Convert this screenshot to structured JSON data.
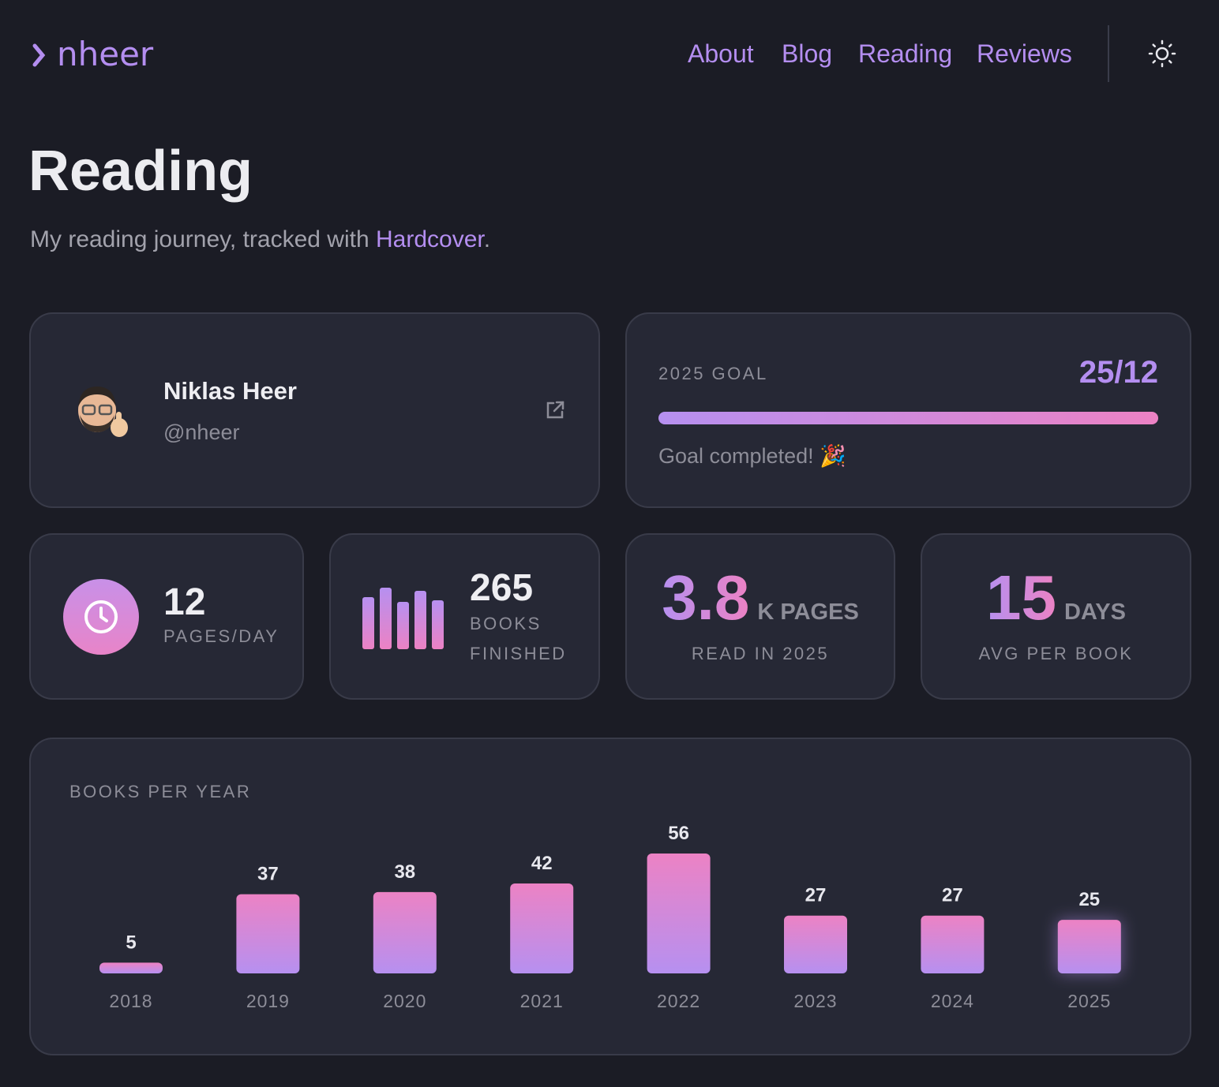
{
  "header": {
    "logo": "nheer",
    "nav": [
      "About",
      "Blog",
      "Reading",
      "Reviews"
    ]
  },
  "page": {
    "title": "Reading",
    "subtitle": "My reading journey, tracked with ",
    "link": "Hardcover",
    "subtitle_end": "."
  },
  "profile": {
    "name": "Niklas Heer",
    "handle": "@nheer"
  },
  "goal": {
    "label": "2025 GOAL",
    "progress": "25/12",
    "status": "Goal completed! 🎉"
  },
  "stats": [
    {
      "value": 12,
      "unit": "PAGES/DAY"
    },
    {
      "value": 265,
      "unit": "BOOKS FINISHED"
    },
    {
      "value": 3.8,
      "unit": "K PAGES",
      "caption": "READ IN 2025"
    },
    {
      "value": 15,
      "unit": "DAYS",
      "caption": "AVG PER BOOK"
    }
  ],
  "chart_data": {
    "type": "bar",
    "title": "BOOKS PER YEAR",
    "categories": [
      "2018",
      "2019",
      "2020",
      "2021",
      "2022",
      "2023",
      "2024",
      "2025"
    ],
    "values": [
      5,
      37,
      38,
      42,
      56,
      27,
      27,
      25
    ],
    "gradient": [
      "#ec82c4",
      "#b690f0"
    ]
  }
}
